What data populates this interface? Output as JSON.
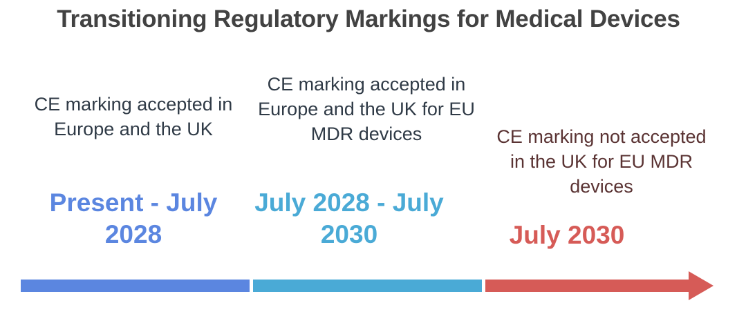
{
  "title": "Transitioning Regulatory Markings for Medical Devices",
  "phases": [
    {
      "period": "Present - July 2028",
      "description": "CE marking accepted in Europe and the UK",
      "color": "#5b86e0",
      "text_color": "#2f3a46"
    },
    {
      "period": "July 2028 - July 2030",
      "description": "CE marking accepted in Europe and the UK for EU MDR devices",
      "color": "#4aaad6",
      "text_color": "#2f3a46"
    },
    {
      "period": "July 2030",
      "description": "CE marking not accepted in the UK for EU MDR devices",
      "color": "#d65b57",
      "text_color": "#5a3333"
    }
  ]
}
